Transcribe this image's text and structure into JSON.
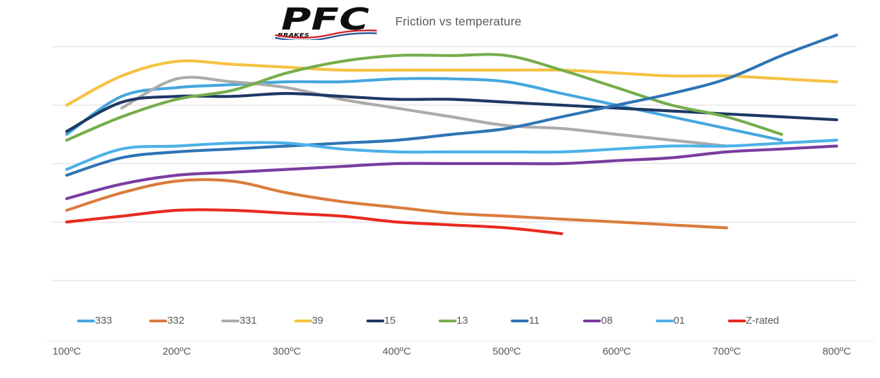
{
  "header": {
    "logo": {
      "text": "PFC",
      "subtext": "BRAKES"
    },
    "title": "Friction vs temperature"
  },
  "colors": {
    "grid": "#D9D9D9",
    "text": "#595959",
    "logo_black": "#0d0d0d",
    "logo_red": "#CE2127",
    "logo_blue": "#27549B"
  },
  "chart_data": {
    "type": "line",
    "title": "Friction vs temperature",
    "xlabel": "",
    "ylabel": "",
    "x_unit": "ºC",
    "x_ticks": [
      100,
      200,
      300,
      400,
      500,
      600,
      700,
      800
    ],
    "x_tick_labels": [
      "100ºC",
      "200ºC",
      "300ºC",
      "400ºC",
      "500ºC",
      "600ºC",
      "700ºC",
      "800ºC"
    ],
    "grid": true,
    "gridline_count": 5,
    "y_axis_labels_visible": false,
    "y_values_estimated": true,
    "ylim": [
      0.2,
      0.65
    ],
    "legend_position": "bottom",
    "series": [
      {
        "name": "333",
        "color": "#45A7DE",
        "x": [
          100,
          150,
          200,
          250,
          300,
          350,
          400,
          450,
          500,
          550,
          600,
          650,
          700,
          750
        ],
        "values": [
          0.45,
          0.515,
          0.53,
          0.535,
          0.54,
          0.54,
          0.545,
          0.545,
          0.54,
          0.52,
          0.5,
          0.48,
          0.46,
          0.44
        ]
      },
      {
        "name": "332",
        "color": "#DB7C3E",
        "x": [
          100,
          150,
          200,
          250,
          300,
          350,
          400,
          450,
          500,
          550,
          600,
          650,
          700
        ],
        "values": [
          0.32,
          0.35,
          0.37,
          0.37,
          0.35,
          0.335,
          0.325,
          0.315,
          0.31,
          0.305,
          0.3,
          0.295,
          0.29
        ]
      },
      {
        "name": "331",
        "color": "#ABABAB",
        "x": [
          150,
          200,
          250,
          300,
          350,
          400,
          450,
          500,
          550,
          600,
          650,
          700
        ],
        "values": [
          0.495,
          0.545,
          0.54,
          0.53,
          0.51,
          0.495,
          0.48,
          0.465,
          0.46,
          0.45,
          0.44,
          0.43
        ]
      },
      {
        "name": "39",
        "color": "#F5C242",
        "x": [
          100,
          150,
          200,
          250,
          300,
          350,
          400,
          450,
          500,
          550,
          600,
          650,
          700,
          750,
          800
        ],
        "values": [
          0.5,
          0.55,
          0.575,
          0.57,
          0.565,
          0.56,
          0.56,
          0.56,
          0.56,
          0.56,
          0.555,
          0.55,
          0.55,
          0.545,
          0.54
        ]
      },
      {
        "name": "15",
        "color": "#1F3864",
        "x": [
          100,
          150,
          200,
          250,
          300,
          350,
          400,
          450,
          500,
          550,
          600,
          650,
          700,
          750,
          800
        ],
        "values": [
          0.455,
          0.505,
          0.515,
          0.515,
          0.52,
          0.515,
          0.51,
          0.51,
          0.505,
          0.5,
          0.495,
          0.49,
          0.485,
          0.48,
          0.475
        ]
      },
      {
        "name": "13",
        "color": "#76AD4B",
        "x": [
          100,
          150,
          200,
          250,
          300,
          350,
          400,
          450,
          500,
          550,
          600,
          650,
          700,
          750
        ],
        "values": [
          0.44,
          0.48,
          0.51,
          0.525,
          0.555,
          0.575,
          0.585,
          0.585,
          0.585,
          0.56,
          0.53,
          0.5,
          0.48,
          0.45
        ]
      },
      {
        "name": "11",
        "color": "#2E74B5",
        "x": [
          100,
          150,
          200,
          250,
          300,
          350,
          400,
          450,
          500,
          550,
          600,
          650,
          700,
          750,
          800
        ],
        "values": [
          0.38,
          0.41,
          0.42,
          0.425,
          0.43,
          0.435,
          0.44,
          0.45,
          0.46,
          0.48,
          0.5,
          0.52,
          0.545,
          0.585,
          0.62
        ]
      },
      {
        "name": "08",
        "color": "#7A3CA0",
        "x": [
          100,
          150,
          200,
          250,
          300,
          350,
          400,
          450,
          500,
          550,
          600,
          650,
          700,
          750,
          800
        ],
        "values": [
          0.34,
          0.365,
          0.38,
          0.385,
          0.39,
          0.395,
          0.4,
          0.4,
          0.4,
          0.4,
          0.405,
          0.41,
          0.42,
          0.425,
          0.43
        ]
      },
      {
        "name": "01",
        "color": "#4DB1E8",
        "x": [
          100,
          150,
          200,
          250,
          300,
          350,
          400,
          450,
          500,
          550,
          600,
          650,
          700,
          750,
          800
        ],
        "values": [
          0.39,
          0.425,
          0.43,
          0.435,
          0.435,
          0.425,
          0.42,
          0.42,
          0.42,
          0.42,
          0.425,
          0.43,
          0.43,
          0.435,
          0.44
        ]
      },
      {
        "name": "Z-rated",
        "color": "#E92A1F",
        "x": [
          100,
          150,
          200,
          250,
          300,
          350,
          400,
          450,
          500,
          550
        ],
        "values": [
          0.3,
          0.31,
          0.32,
          0.32,
          0.315,
          0.31,
          0.3,
          0.295,
          0.29,
          0.28
        ]
      }
    ]
  }
}
